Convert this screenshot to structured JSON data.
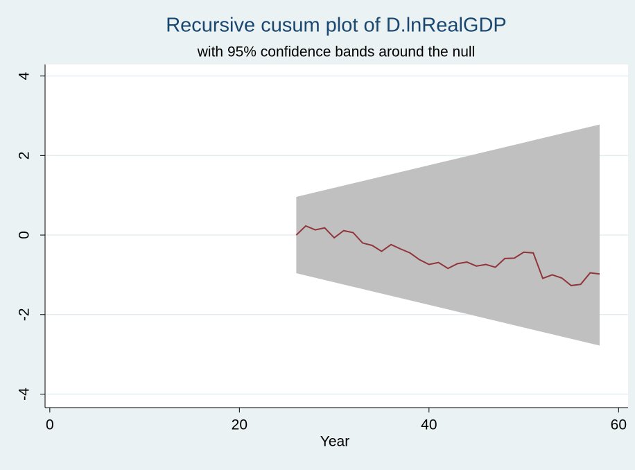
{
  "chart_data": {
    "type": "line",
    "title": "Recursive cusum plot of D.lnRealGDP",
    "subtitle": "with 95% confidence bands around the null",
    "x_label": "Year",
    "x": [
      26,
      27,
      28,
      29,
      30,
      31,
      32,
      33,
      34,
      35,
      36,
      37,
      38,
      39,
      40,
      41,
      42,
      43,
      44,
      45,
      46,
      47,
      48,
      49,
      50,
      51,
      52,
      53,
      54,
      55,
      56,
      57,
      58
    ],
    "series": [
      {
        "color": "#90353b",
        "values": [
          0,
          0.23,
          0.13,
          0.18,
          -0.07,
          0.11,
          0.06,
          -0.2,
          -0.26,
          -0.41,
          -0.24,
          -0.35,
          -0.45,
          -0.62,
          -0.74,
          -0.69,
          -0.84,
          -0.72,
          -0.68,
          -0.78,
          -0.74,
          -0.81,
          -0.59,
          -0.58,
          -0.43,
          -0.45,
          -1.09,
          -1.0,
          -1.08,
          -1.27,
          -1.24,
          -0.95,
          -0.98
        ]
      }
    ],
    "band": {
      "x": [
        26,
        58
      ],
      "upper": [
        0.96,
        2.78
      ],
      "lower": [
        -0.96,
        -2.78
      ],
      "color": "#c0c0c0"
    },
    "xlim": [
      -0.5,
      61
    ],
    "ylim": [
      -4.34,
      4.29
    ],
    "xticks": [
      0,
      20,
      40,
      60
    ],
    "yticks": [
      -4,
      -2,
      0,
      2,
      4
    ],
    "grid": true
  }
}
